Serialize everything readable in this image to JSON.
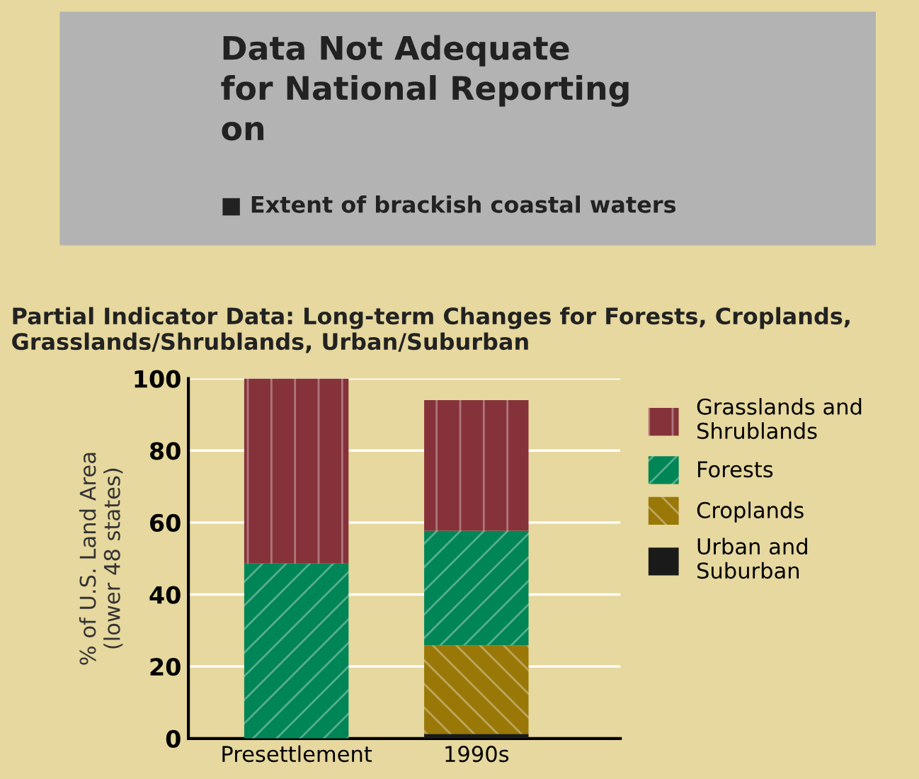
{
  "chart_data": {
    "type": "bar",
    "stacked": true,
    "title": "Partial Indicator Data: Long-term Changes for Forests, Croplands,\nGrasslands/Shrublands, Urban/Suburban",
    "annotations": [
      "Data Not Adequate\nfor National Reporting\non",
      "■ Extent of brackish coastal waters"
    ],
    "ylabel": "% of U.S. Land Area\n(lower 48 states)",
    "categories": [
      "Presettlement",
      "1990s"
    ],
    "series": [
      {
        "name": "Urban and\nSuburban",
        "color": "#1a1a1a",
        "values": [
          0,
          1.3
        ]
      },
      {
        "name": "Croplands",
        "color": "#9a7808",
        "values": [
          0,
          24.6
        ]
      },
      {
        "name": "Forests",
        "color": "#008556",
        "values": [
          48.6,
          31.8
        ]
      },
      {
        "name": "Grasslands and\nShrublands",
        "color": "#86323a",
        "values": [
          51.4,
          36.3
        ]
      }
    ],
    "ylim": [
      0,
      100
    ],
    "yticks": [
      0,
      20,
      40,
      60,
      80,
      100
    ],
    "grid": "y",
    "legend": "right"
  }
}
